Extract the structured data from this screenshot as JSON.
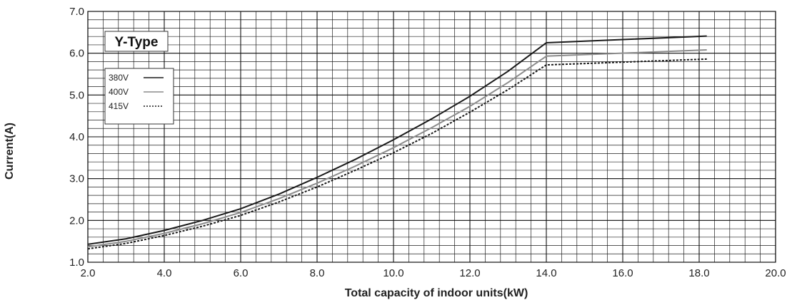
{
  "chart_data": {
    "type": "line",
    "xlabel": "Total capacity of indoor units(kW)",
    "ylabel": "Current(A)",
    "badge": "Y-Type",
    "xlim": [
      2.0,
      20.0
    ],
    "ylim": [
      1.0,
      7.0
    ],
    "x_ticks": [
      "2.0",
      "4.0",
      "6.0",
      "8.0",
      "10.0",
      "12.0",
      "14.0",
      "16.0",
      "18.0",
      "20.0"
    ],
    "y_ticks": [
      "1.0",
      "2.0",
      "3.0",
      "4.0",
      "5.0",
      "6.0",
      "7.0"
    ],
    "grid": true,
    "legend_placement": "top-left",
    "series": [
      {
        "name": "380V",
        "color": "#1a1a1a",
        "dash": "solid",
        "points": [
          [
            2.0,
            1.43
          ],
          [
            3.0,
            1.56
          ],
          [
            4.0,
            1.76
          ],
          [
            5.0,
            2.0
          ],
          [
            6.0,
            2.28
          ],
          [
            7.0,
            2.63
          ],
          [
            8.0,
            3.03
          ],
          [
            9.0,
            3.46
          ],
          [
            10.0,
            3.93
          ],
          [
            11.0,
            4.43
          ],
          [
            12.0,
            4.97
          ],
          [
            13.0,
            5.57
          ],
          [
            14.0,
            6.25
          ],
          [
            18.2,
            6.41
          ]
        ]
      },
      {
        "name": "400V",
        "color": "#8c8c8c",
        "dash": "solid",
        "points": [
          [
            2.0,
            1.37
          ],
          [
            3.0,
            1.5
          ],
          [
            4.0,
            1.69
          ],
          [
            5.0,
            1.92
          ],
          [
            6.0,
            2.19
          ],
          [
            7.0,
            2.52
          ],
          [
            8.0,
            2.89
          ],
          [
            9.0,
            3.3
          ],
          [
            10.0,
            3.74
          ],
          [
            11.0,
            4.22
          ],
          [
            12.0,
            4.73
          ],
          [
            13.0,
            5.3
          ],
          [
            14.0,
            5.93
          ],
          [
            18.2,
            6.08
          ]
        ]
      },
      {
        "name": "415V",
        "color": "#1a1a1a",
        "dash": "dotted",
        "points": [
          [
            2.0,
            1.32
          ],
          [
            3.0,
            1.45
          ],
          [
            4.0,
            1.64
          ],
          [
            5.0,
            1.86
          ],
          [
            6.0,
            2.12
          ],
          [
            7.0,
            2.44
          ],
          [
            8.0,
            2.8
          ],
          [
            9.0,
            3.2
          ],
          [
            10.0,
            3.62
          ],
          [
            11.0,
            4.08
          ],
          [
            12.0,
            4.59
          ],
          [
            13.0,
            5.13
          ],
          [
            14.0,
            5.72
          ],
          [
            18.2,
            5.86
          ]
        ]
      }
    ]
  }
}
